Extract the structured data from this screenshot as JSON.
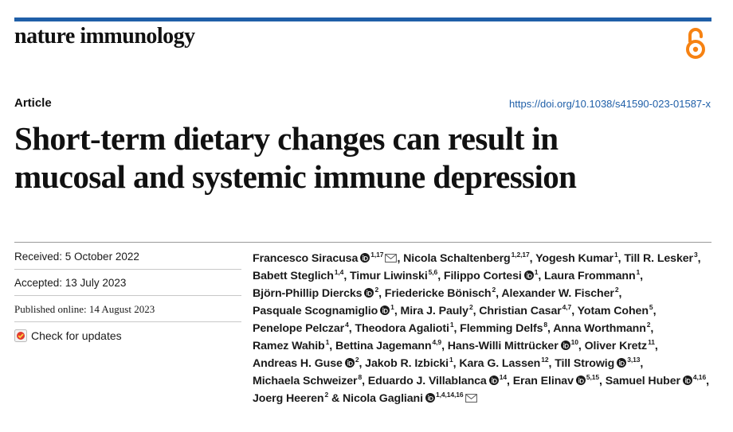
{
  "header": {
    "journal_name": "nature immunology",
    "open_access_icon": "open-access-lock-icon",
    "accent_color": "#1f5fa8",
    "oa_color": "#f68212"
  },
  "article": {
    "type": "Article",
    "doi": "https://doi.org/10.1038/s41590-023-01587-x",
    "title_line1": "Short-term dietary changes can result in",
    "title_line2": "mucosal and systemic immune depression"
  },
  "dates": {
    "received": "Received: 5 October 2022",
    "accepted": "Accepted: 13 July 2023",
    "published": "Published online: 14 August 2023",
    "check_updates": "Check for updates"
  },
  "authors": [
    {
      "name": "Francesco Siracusa",
      "sup": "1,17",
      "orcid": true,
      "mail": true,
      "sep": ","
    },
    {
      "name": "Nicola Schaltenberg",
      "sup": "1,2,17",
      "orcid": false,
      "mail": false,
      "sep": ","
    },
    {
      "name": "Yogesh Kumar",
      "sup": "1",
      "orcid": false,
      "mail": false,
      "sep": ","
    },
    {
      "name": "Till R. Lesker",
      "sup": "3",
      "orcid": false,
      "mail": false,
      "sep": ","
    },
    {
      "name": "Babett Steglich",
      "sup": "1,4",
      "orcid": false,
      "mail": false,
      "sep": ","
    },
    {
      "name": "Timur Liwinski",
      "sup": "5,6",
      "orcid": false,
      "mail": false,
      "sep": ","
    },
    {
      "name": "Filippo Cortesi",
      "sup": "1",
      "orcid": true,
      "mail": false,
      "sep": ","
    },
    {
      "name": "Laura Frommann",
      "sup": "1",
      "orcid": false,
      "mail": false,
      "sep": ","
    },
    {
      "name": "Björn-Phillip Diercks",
      "sup": "2",
      "orcid": true,
      "mail": false,
      "sep": ","
    },
    {
      "name": "Friedericke Bönisch",
      "sup": "2",
      "orcid": false,
      "mail": false,
      "sep": ","
    },
    {
      "name": "Alexander W. Fischer",
      "sup": "2",
      "orcid": false,
      "mail": false,
      "sep": ","
    },
    {
      "name": "Pasquale Scognamiglio",
      "sup": "1",
      "orcid": true,
      "mail": false,
      "sep": ","
    },
    {
      "name": "Mira J. Pauly",
      "sup": "2",
      "orcid": false,
      "mail": false,
      "sep": ","
    },
    {
      "name": "Christian Casar",
      "sup": "4,7",
      "orcid": false,
      "mail": false,
      "sep": ","
    },
    {
      "name": "Yotam Cohen",
      "sup": "5",
      "orcid": false,
      "mail": false,
      "sep": ","
    },
    {
      "name": "Penelope Pelczar",
      "sup": "4",
      "orcid": false,
      "mail": false,
      "sep": ","
    },
    {
      "name": "Theodora Agalioti",
      "sup": "1",
      "orcid": false,
      "mail": false,
      "sep": ","
    },
    {
      "name": "Flemming Delfs",
      "sup": "8",
      "orcid": false,
      "mail": false,
      "sep": ","
    },
    {
      "name": "Anna Worthmann",
      "sup": "2",
      "orcid": false,
      "mail": false,
      "sep": ","
    },
    {
      "name": "Ramez Wahib",
      "sup": "1",
      "orcid": false,
      "mail": false,
      "sep": ","
    },
    {
      "name": "Bettina Jagemann",
      "sup": "4,9",
      "orcid": false,
      "mail": false,
      "sep": ","
    },
    {
      "name": "Hans-Willi Mittrücker",
      "sup": "10",
      "orcid": true,
      "mail": false,
      "sep": ","
    },
    {
      "name": "Oliver Kretz",
      "sup": "11",
      "orcid": false,
      "mail": false,
      "sep": ","
    },
    {
      "name": "Andreas H. Guse",
      "sup": "2",
      "orcid": true,
      "mail": false,
      "sep": ","
    },
    {
      "name": "Jakob R. Izbicki",
      "sup": "1",
      "orcid": false,
      "mail": false,
      "sep": ","
    },
    {
      "name": "Kara G. Lassen",
      "sup": "12",
      "orcid": false,
      "mail": false,
      "sep": ","
    },
    {
      "name": "Till Strowig",
      "sup": "3,13",
      "orcid": true,
      "mail": false,
      "sep": ","
    },
    {
      "name": "Michaela Schweizer",
      "sup": "8",
      "orcid": false,
      "mail": false,
      "sep": ","
    },
    {
      "name": "Eduardo J. Villablanca",
      "sup": "14",
      "orcid": true,
      "mail": false,
      "sep": ","
    },
    {
      "name": "Eran Elinav",
      "sup": "5,15",
      "orcid": true,
      "mail": false,
      "sep": ","
    },
    {
      "name": "Samuel Huber",
      "sup": "4,16",
      "orcid": true,
      "mail": false,
      "sep": ","
    },
    {
      "name": "Joerg Heeren",
      "sup": "2",
      "orcid": false,
      "mail": false,
      "sep": ""
    },
    {
      "name": "& Nicola Gagliani",
      "sup": "1,4,14,16",
      "orcid": true,
      "mail": true,
      "sep": ""
    }
  ]
}
